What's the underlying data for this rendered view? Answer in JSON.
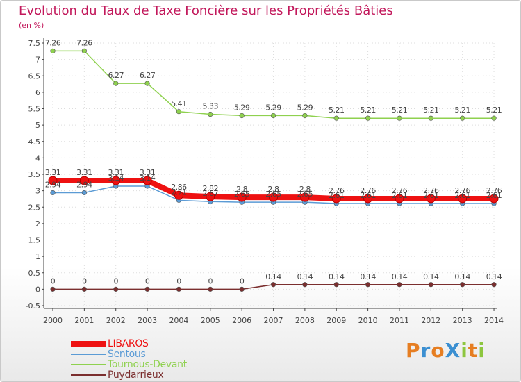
{
  "title": "Evolution du Taux de Taxe Foncière sur les Propriétés Bâties",
  "subtitle": "(en %)",
  "logo": "ProXiti",
  "colors": {
    "title": "#c2185b",
    "axis": "#444444",
    "grid": "#dddddd",
    "logo_letters": [
      "#e67e22",
      "#3b8fd1",
      "#e67e22",
      "#3b8fd1",
      "#8dc63f",
      "#e67e22",
      "#8dc63f"
    ]
  },
  "chart_data": {
    "type": "line",
    "x": [
      "2000",
      "2001",
      "2002",
      "2003",
      "2004",
      "2005",
      "2006",
      "2007",
      "2008",
      "2009",
      "2010",
      "2011",
      "2012",
      "2013",
      "2014"
    ],
    "ylim": [
      -0.5,
      7.5
    ],
    "yticks": [
      -0.5,
      0,
      0.5,
      1,
      1.5,
      2,
      2.5,
      3,
      3.5,
      4,
      4.5,
      5,
      5.5,
      6,
      6.5,
      7,
      7.5
    ],
    "ytick_labels": [
      "-0.5",
      "0",
      "0.5",
      "1",
      "1.5",
      "2",
      "2.5",
      "3",
      "3.5",
      "4",
      "4.5",
      "5",
      "5.5",
      "6",
      "6.5",
      "7",
      "7.5"
    ],
    "grid": true,
    "legend_position": "bottom-left",
    "series": [
      {
        "name": "LIBAROS",
        "color": "#ee1111",
        "thick": true,
        "values": [
          3.31,
          3.31,
          3.31,
          3.31,
          2.86,
          2.82,
          2.8,
          2.8,
          2.8,
          2.76,
          2.76,
          2.76,
          2.76,
          2.76,
          2.76
        ],
        "labels": [
          "3.31",
          "3.31",
          "3.31",
          "3.31",
          "2.86",
          "2.82",
          "2.8",
          "2.8",
          "2.8",
          "2.76",
          "2.76",
          "2.76",
          "2.76",
          "2.76",
          "2.76"
        ]
      },
      {
        "name": "Sentous",
        "color": "#5b9bd5",
        "thick": false,
        "values": [
          2.94,
          2.94,
          3.14,
          3.14,
          2.71,
          2.67,
          2.65,
          2.65,
          2.65,
          2.61,
          2.61,
          2.61,
          2.61,
          2.61,
          2.61
        ],
        "labels": [
          "2.94",
          "2.94",
          "3.14",
          "3.14",
          "2.71",
          "2.67",
          "2.65",
          "2.65",
          "2.65",
          "2.61",
          "2.61",
          "2.61",
          "2.61",
          "2.61",
          "2.61"
        ]
      },
      {
        "name": "Tournous-Devant",
        "color": "#8fd14f",
        "thick": false,
        "values": [
          7.26,
          7.26,
          6.27,
          6.27,
          5.41,
          5.33,
          5.29,
          5.29,
          5.29,
          5.21,
          5.21,
          5.21,
          5.21,
          5.21,
          5.21
        ],
        "labels": [
          "7.26",
          "7.26",
          "6.27",
          "6.27",
          "5.41",
          "5.33",
          "5.29",
          "5.29",
          "5.29",
          "5.21",
          "5.21",
          "5.21",
          "5.21",
          "5.21",
          "5.21"
        ]
      },
      {
        "name": "Puydarrieux",
        "color": "#7b2e2e",
        "thick": false,
        "values": [
          0,
          0,
          0,
          0,
          0,
          0,
          0,
          0.14,
          0.14,
          0.14,
          0.14,
          0.14,
          0.14,
          0.14,
          0.14
        ],
        "labels": [
          "0",
          "0",
          "0",
          "0",
          "0",
          "0",
          "0",
          "0.14",
          "0.14",
          "0.14",
          "0.14",
          "0.14",
          "0.14",
          "0.14",
          "0.14"
        ]
      }
    ]
  }
}
